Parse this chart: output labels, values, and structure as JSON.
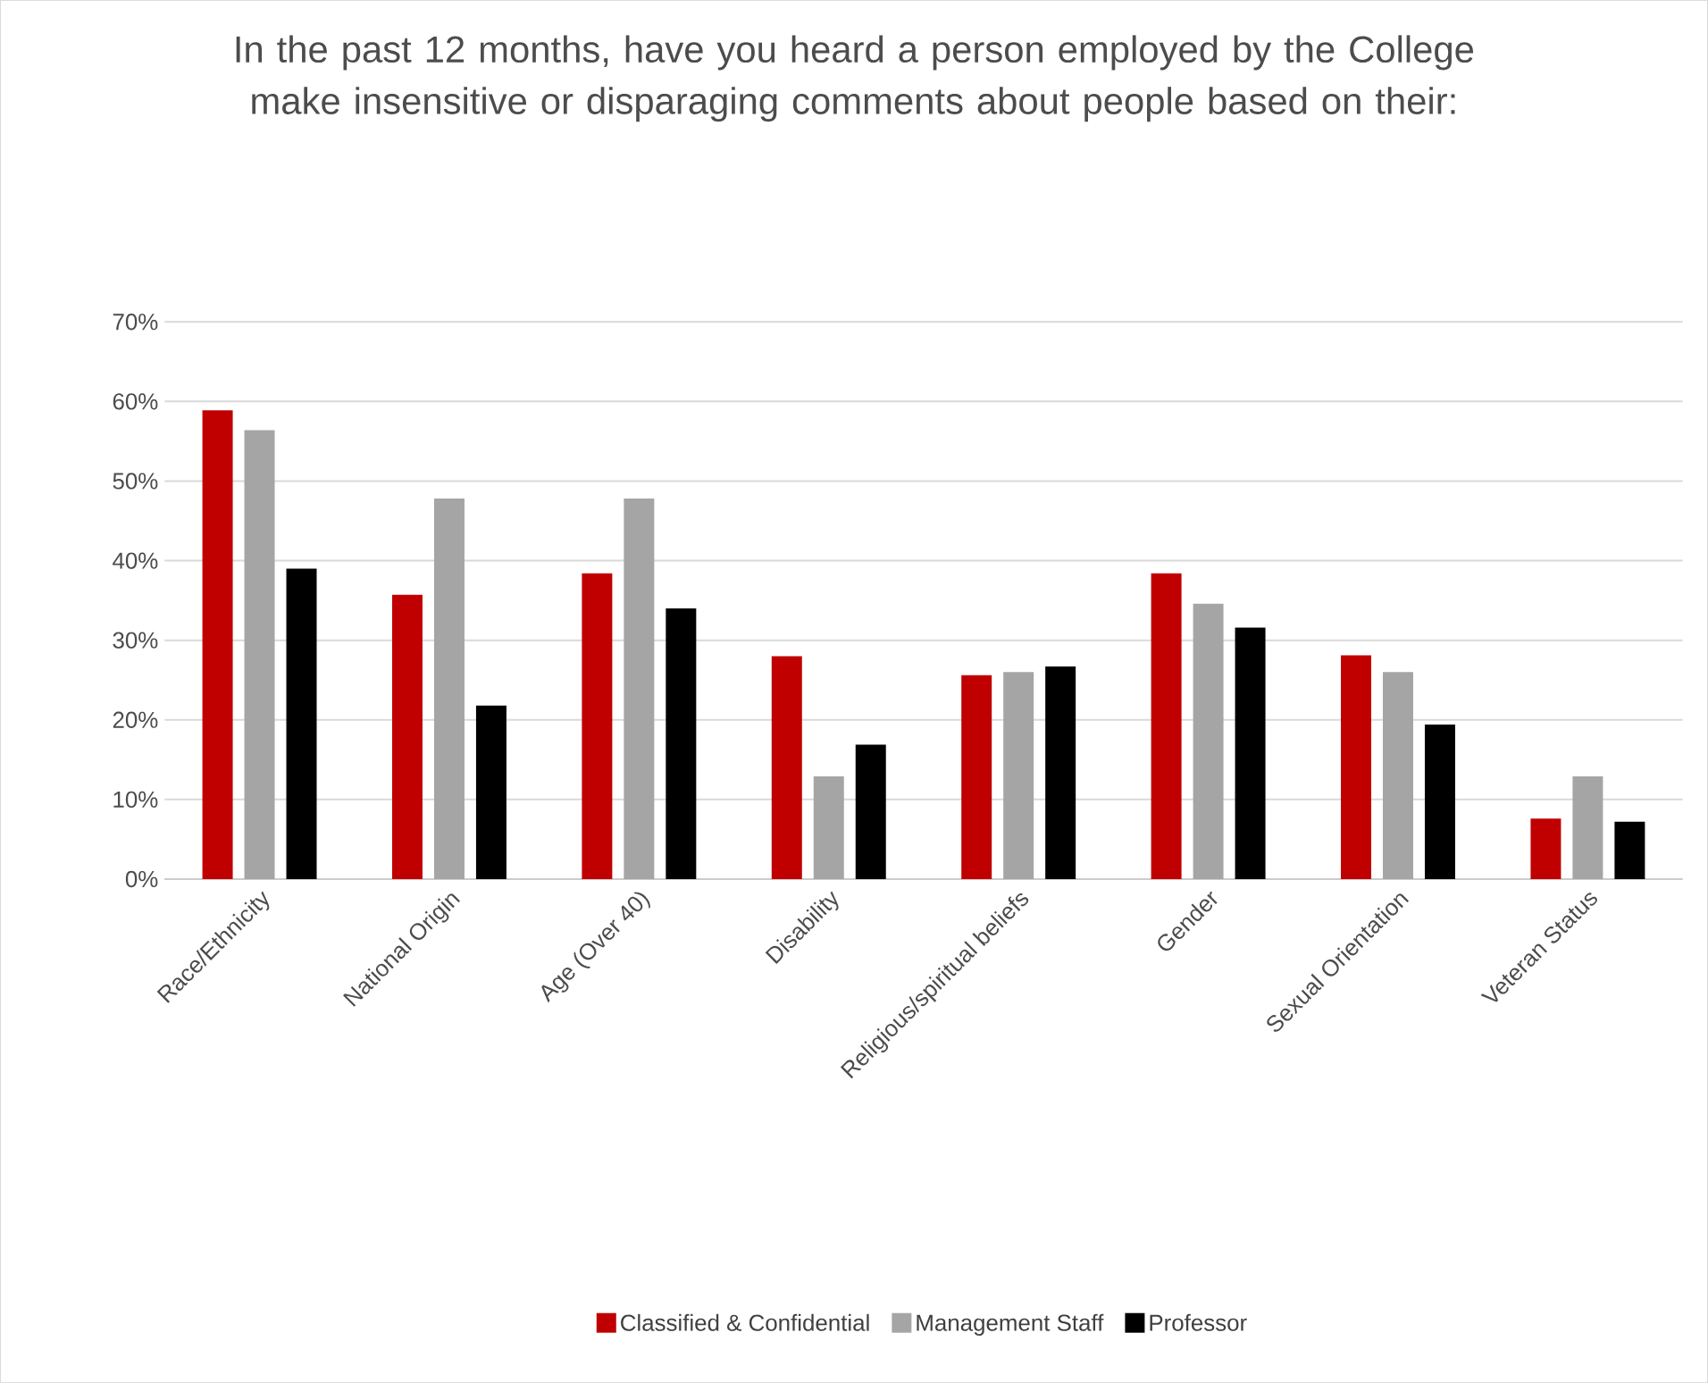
{
  "chart_data": {
    "type": "bar",
    "title": "In the past 12 months, have you heard a person employed by the College make insensitive or disparaging comments about people based on their:",
    "categories": [
      "Race/Ethnicity",
      "National Origin",
      "Age (Over 40)",
      "Disability",
      "Religious/spiritual beliefs",
      "Gender",
      "Sexual Orientation",
      "Veteran Status"
    ],
    "series": [
      {
        "name": "Classified & Confidential",
        "color": "#c00000",
        "values": [
          58.9,
          35.7,
          38.4,
          28.0,
          25.6,
          38.4,
          28.1,
          7.6
        ]
      },
      {
        "name": "Management Staff",
        "color": "#a5a5a5",
        "values": [
          56.4,
          47.8,
          47.8,
          12.9,
          26.0,
          34.6,
          26.0,
          12.9
        ]
      },
      {
        "name": "Professor",
        "color": "#000000",
        "values": [
          39.0,
          21.8,
          34.0,
          16.9,
          26.7,
          31.6,
          19.4,
          7.2
        ]
      }
    ],
    "ylim": [
      0,
      70
    ],
    "yticks": [
      {
        "value": 0,
        "label": "0%"
      },
      {
        "value": 10,
        "label": "10%"
      },
      {
        "value": 20,
        "label": "20%"
      },
      {
        "value": 30,
        "label": "30%"
      },
      {
        "value": 40,
        "label": "40%"
      },
      {
        "value": 50,
        "label": "50%"
      },
      {
        "value": 60,
        "label": "60%"
      },
      {
        "value": 70,
        "label": "70%"
      }
    ],
    "grid": "y",
    "legend": "bottom"
  }
}
